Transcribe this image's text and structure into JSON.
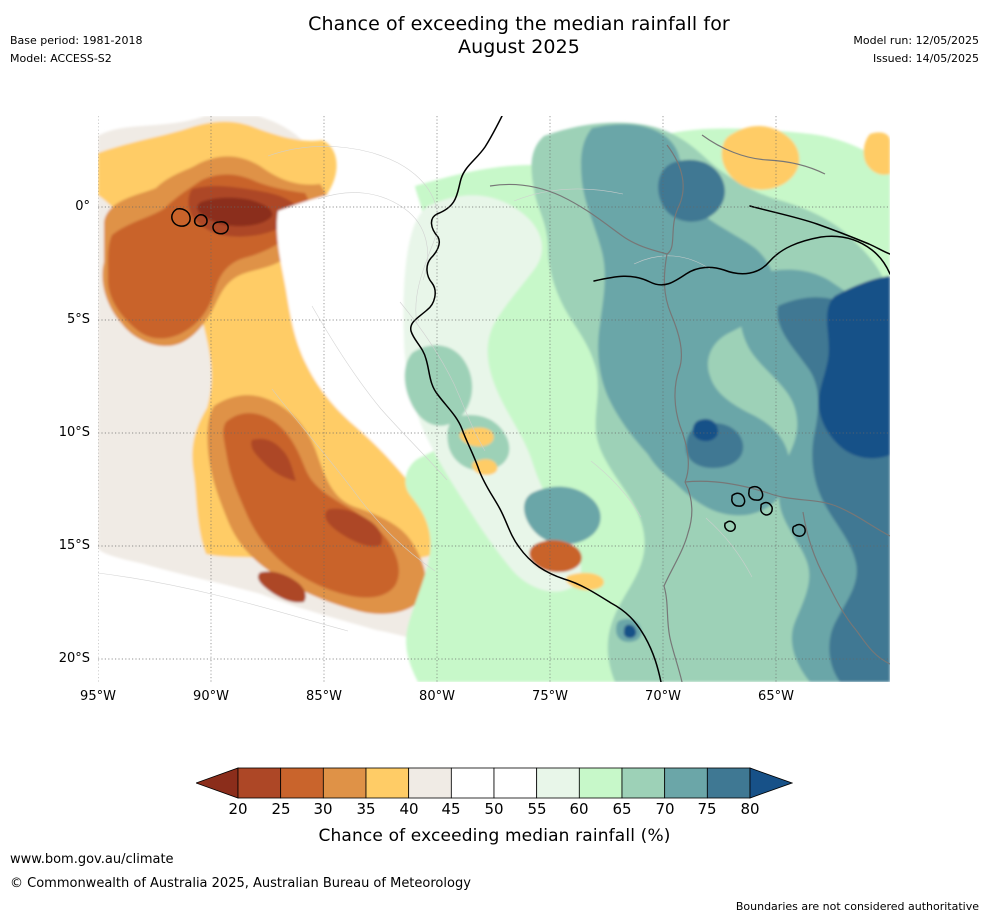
{
  "title": {
    "line1": "Chance of exceeding the median rainfall for",
    "line2": "August 2025"
  },
  "meta": {
    "base_period": "Base period: 1981-2018",
    "model": "Model: ACCESS-S2",
    "model_run": "Model run: 12/05/2025",
    "issued": "Issued: 14/05/2025"
  },
  "map": {
    "x_axis_labels": [
      "95°W",
      "90°W",
      "85°W",
      "80°W",
      "75°W",
      "70°W",
      "65°W"
    ],
    "y_axis_labels": [
      "0°",
      "5°S",
      "10°S",
      "15°S",
      "20°S"
    ],
    "longitude_range": [
      -95,
      -60
    ],
    "latitude_range": [
      -21,
      4
    ],
    "ocean_color": "#ffffff",
    "land_outline_color": "#000000",
    "border_color": "#777777",
    "grid_color": "#666666"
  },
  "legend": {
    "title": "Chance of exceeding median rainfall (%)",
    "ticks": [
      "20",
      "25",
      "30",
      "35",
      "40",
      "45",
      "50",
      "55",
      "60",
      "65",
      "70",
      "75",
      "80"
    ],
    "colors": [
      "#8b2d1b",
      "#ad4726",
      "#c9642c",
      "#df9247",
      "#ffcc66",
      "#f0ebe5",
      "#ffffff",
      "#ffffff",
      "#e8f6e9",
      "#c7f8c9",
      "#9dd1b7",
      "#6ba6a8",
      "#3f7893",
      "#175188"
    ]
  },
  "footer": {
    "url": "www.bom.gov.au/climate",
    "copyright": "© Commonwealth of Australia 2025, Australian Bureau of Meteorology",
    "note": "Boundaries are not considered authoritative"
  }
}
